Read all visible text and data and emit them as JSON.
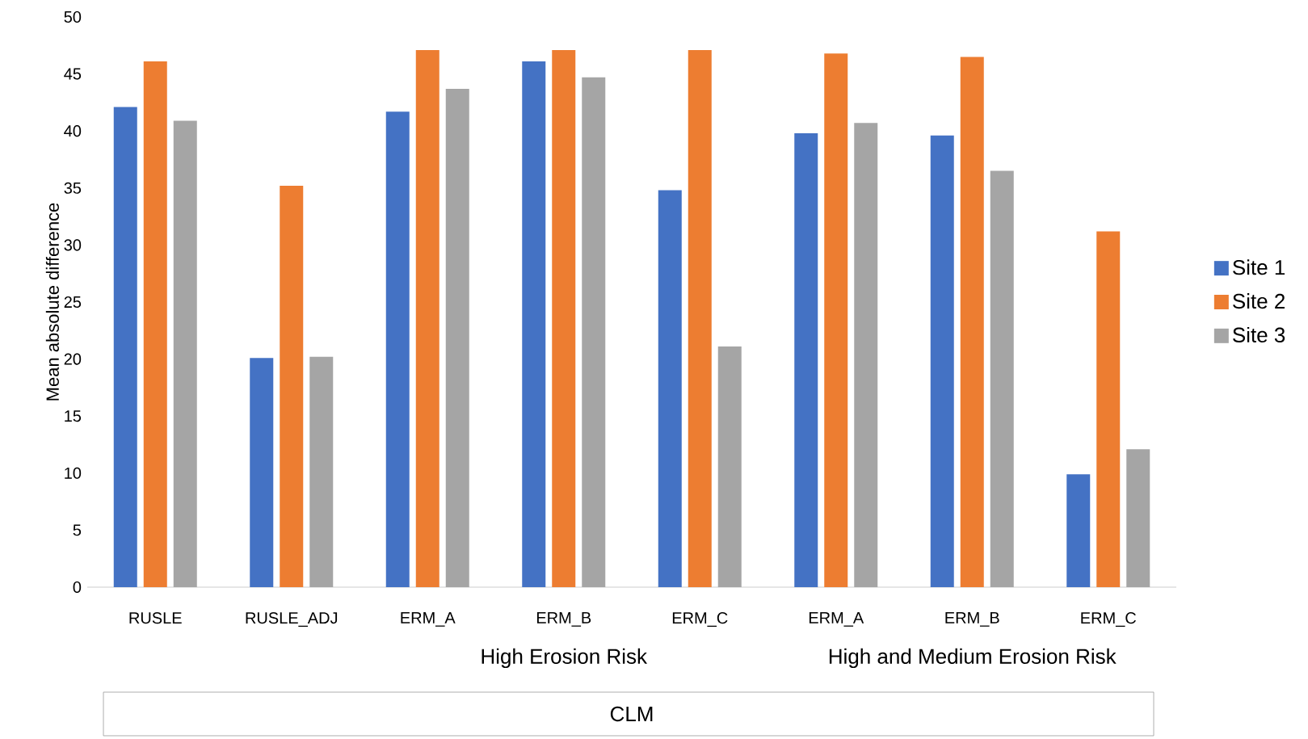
{
  "chart_data": {
    "type": "bar",
    "ylabel": "Mean absolute difference",
    "categories": [
      "RUSLE",
      "RUSLE_ADJ",
      "ERM_A",
      "ERM_B",
      "ERM_C",
      "ERM_A",
      "ERM_B",
      "ERM_C"
    ],
    "series": [
      {
        "name": "Site 1",
        "color": "#4472c4",
        "values": [
          42.1,
          20.1,
          41.7,
          46.1,
          34.8,
          39.8,
          39.6,
          9.9
        ]
      },
      {
        "name": "Site 2",
        "color": "#ed7d31",
        "values": [
          46.1,
          35.2,
          47.1,
          47.1,
          47.1,
          46.8,
          46.5,
          31.2
        ]
      },
      {
        "name": "Site 3",
        "color": "#a5a5a5",
        "values": [
          40.9,
          20.2,
          43.7,
          44.7,
          21.1,
          40.7,
          36.5,
          12.1
        ]
      }
    ],
    "ylim": [
      0,
      50
    ],
    "yticks": [
      0,
      5,
      10,
      15,
      20,
      25,
      30,
      35,
      40,
      45,
      50
    ],
    "legend": "right",
    "annotations": [
      "High Erosion Risk",
      "High and Medium Erosion Risk",
      "CLM"
    ]
  }
}
